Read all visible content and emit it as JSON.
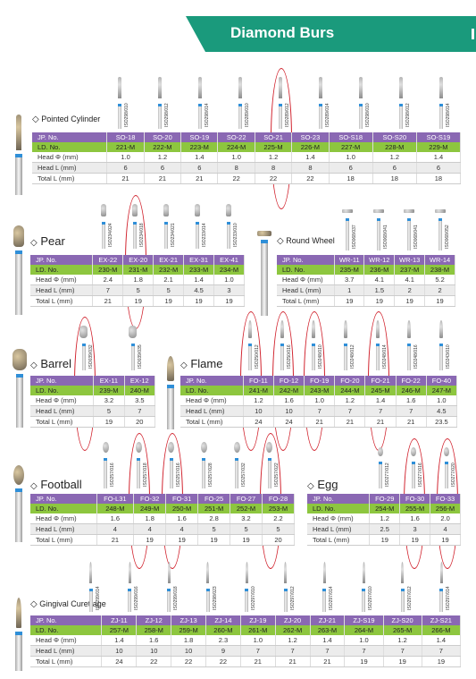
{
  "banner": {
    "title": "Diamond Burs"
  },
  "sections": [
    {
      "title": "Pointed Cylinder",
      "row_labels": [
        "JP. No.",
        "LD. No.",
        "Head Φ (mm)",
        "Head L (mm)",
        "Total L (mm)"
      ],
      "jp": [
        "SO-18",
        "SO-20",
        "SO-19",
        "SO-22",
        "SO-21",
        "SO-23",
        "SO-S18",
        "SO-S20",
        "SO-S19"
      ],
      "ld": [
        "221-M",
        "222-M",
        "223-M",
        "224-M",
        "225-M",
        "226-M",
        "227-M",
        "228-M",
        "229-M"
      ],
      "head_d": [
        "1.0",
        "1.2",
        "1.4",
        "1.0",
        "1.2",
        "1.4",
        "1.0",
        "1.2",
        "1.4"
      ],
      "head_l": [
        "6",
        "6",
        "6",
        "8",
        "8",
        "8",
        "6",
        "6",
        "6"
      ],
      "total_l": [
        "21",
        "21",
        "21",
        "22",
        "22",
        "22",
        "18",
        "18",
        "18"
      ],
      "iso": [
        "ISO298/010",
        "ISO298/012",
        "ISO298/014",
        "ISO289/010",
        "ISO289/012",
        "ISO289/014",
        "ISO298/010",
        "ISO298/012",
        "ISO298/014"
      ]
    },
    {
      "title": "Pear",
      "row_labels": [
        "JP. No.",
        "LD. No.",
        "Head Φ (mm)",
        "Head L (mm)",
        "Total L (mm)"
      ],
      "jp": [
        "EX-22",
        "EX-20",
        "EX-21",
        "EX-31",
        "EX-41"
      ],
      "ld": [
        "230-M",
        "231-M",
        "232-M",
        "233-M",
        "234-M"
      ],
      "head_d": [
        "2.4",
        "1.8",
        "2.1",
        "1.4",
        "1.0"
      ],
      "head_l": [
        "7",
        "5",
        "5",
        "4.5",
        "3"
      ],
      "total_l": [
        "21",
        "19",
        "19",
        "19",
        "19"
      ],
      "iso": [
        "ISO234/024",
        "ISO234/018",
        "ISO234/021",
        "ISO233/014",
        "ISO233/010"
      ]
    },
    {
      "title": "Round Wheel",
      "row_labels": [
        "JP. No.",
        "LD. No.",
        "Head Φ (mm)",
        "Head L (mm)",
        "Total L (mm)"
      ],
      "jp": [
        "WR-11",
        "WR-12",
        "WR-13",
        "WR-14"
      ],
      "ld": [
        "235-M",
        "236-M",
        "237-M",
        "238-M"
      ],
      "head_d": [
        "3.7",
        "4.1",
        "4.1",
        "5.2"
      ],
      "head_l": [
        "1",
        "1.5",
        "2",
        "2"
      ],
      "total_l": [
        "19",
        "19",
        "19",
        "19"
      ],
      "iso": [
        "ISO068/037",
        "ISO068/041",
        "ISO068/041",
        "ISO068/052"
      ]
    },
    {
      "title": "Barrel",
      "row_labels": [
        "JP. No.",
        "LD. No.",
        "Head Φ (mm)",
        "Head L (mm)",
        "Total L (mm)"
      ],
      "jp": [
        "EX-11",
        "EX-12"
      ],
      "ld": [
        "239-M",
        "240-M"
      ],
      "head_d": [
        "3.2",
        "3.5"
      ],
      "head_l": [
        "5",
        "7"
      ],
      "total_l": [
        "19",
        "20"
      ],
      "iso": [
        "ISO039/032",
        "ISO039/035"
      ]
    },
    {
      "title": "Flame",
      "row_labels": [
        "JP. No.",
        "LD. No.",
        "Head Φ (mm)",
        "Head L (mm)",
        "Total L (mm)"
      ],
      "jp": [
        "FO-11",
        "FO-12",
        "FO-19",
        "FO-20",
        "FO-21",
        "FO-22",
        "FO-40"
      ],
      "ld": [
        "241-M",
        "242-M",
        "243-M",
        "244-M",
        "245-M",
        "246-M",
        "247-M"
      ],
      "head_d": [
        "1.2",
        "1.6",
        "1.0",
        "1.2",
        "1.4",
        "1.6",
        "1.0"
      ],
      "head_l": [
        "10",
        "10",
        "7",
        "7",
        "7",
        "7",
        "4.5"
      ],
      "total_l": [
        "24",
        "24",
        "21",
        "21",
        "21",
        "21",
        "23.5"
      ],
      "iso": [
        "ISO250/012",
        "ISO250/016",
        "ISO248/010",
        "ISO248/012",
        "ISO248/014",
        "ISO248/016",
        "ISO243/010"
      ]
    },
    {
      "title": "Football",
      "row_labels": [
        "JP. No.",
        "LD. No.",
        "Head Φ (mm)",
        "Head L (mm)",
        "Total L (mm)"
      ],
      "jp": [
        "FO-L31",
        "FO-32",
        "FO-31",
        "FO-25",
        "FO-27",
        "FO-28"
      ],
      "ld": [
        "248-M",
        "249-M",
        "250-M",
        "251-M",
        "252-M",
        "253-M"
      ],
      "head_d": [
        "1.6",
        "1.8",
        "1.6",
        "2.8",
        "3.2",
        "2.2"
      ],
      "head_l": [
        "4",
        "4",
        "4",
        "5",
        "5",
        "5"
      ],
      "total_l": [
        "21",
        "19",
        "19",
        "19",
        "19",
        "20"
      ],
      "iso": [
        "ISO257/016",
        "ISO257/018",
        "ISO257/016",
        "ISO257/028",
        "ISO257/032",
        "ISO257/022"
      ]
    },
    {
      "title": "Egg",
      "row_labels": [
        "JP. No.",
        "LD. No.",
        "Head Φ (mm)",
        "Head L (mm)",
        "Total L (mm)"
      ],
      "jp": [
        "FO-29",
        "FO-30",
        "FO-33"
      ],
      "ld": [
        "254-M",
        "255-M",
        "256-M"
      ],
      "head_d": [
        "1.2",
        "1.6",
        "2.0"
      ],
      "head_l": [
        "2.5",
        "3",
        "4"
      ],
      "total_l": [
        "19",
        "19",
        "19"
      ],
      "iso": [
        "ISO277/012",
        "ISO277/016",
        "ISO277/020"
      ]
    },
    {
      "title": "Gingival Curettage",
      "row_labels": [
        "JP. No.",
        "LD. No.",
        "Head Φ (mm)",
        "Head L (mm)",
        "Total L (mm)"
      ],
      "jp": [
        "ZJ-11",
        "ZJ-12",
        "ZJ-13",
        "ZJ-14",
        "ZJ-19",
        "ZJ-20",
        "ZJ-21",
        "ZJ-S19",
        "ZJ-S20",
        "ZJ-S21"
      ],
      "ld": [
        "257-M",
        "258-M",
        "259-M",
        "260-M",
        "261-M",
        "262-M",
        "263-M",
        "264-M",
        "265-M",
        "266-M"
      ],
      "head_d": [
        "1.4",
        "1.6",
        "1.8",
        "2.3",
        "1.0",
        "1.2",
        "1.4",
        "1.0",
        "1.2",
        "1.4"
      ],
      "head_l": [
        "10",
        "10",
        "10",
        "9",
        "7",
        "7",
        "7",
        "7",
        "7",
        "7"
      ],
      "total_l": [
        "24",
        "22",
        "22",
        "22",
        "21",
        "21",
        "21",
        "19",
        "19",
        "19"
      ],
      "iso": [
        "ISO299/014",
        "ISO299/016",
        "ISO299/018",
        "ISO298/023",
        "ISO297/010",
        "ISO297/012",
        "ISO297/014",
        "ISO297/010",
        "ISO297/012",
        "ISO297/014"
      ]
    }
  ]
}
